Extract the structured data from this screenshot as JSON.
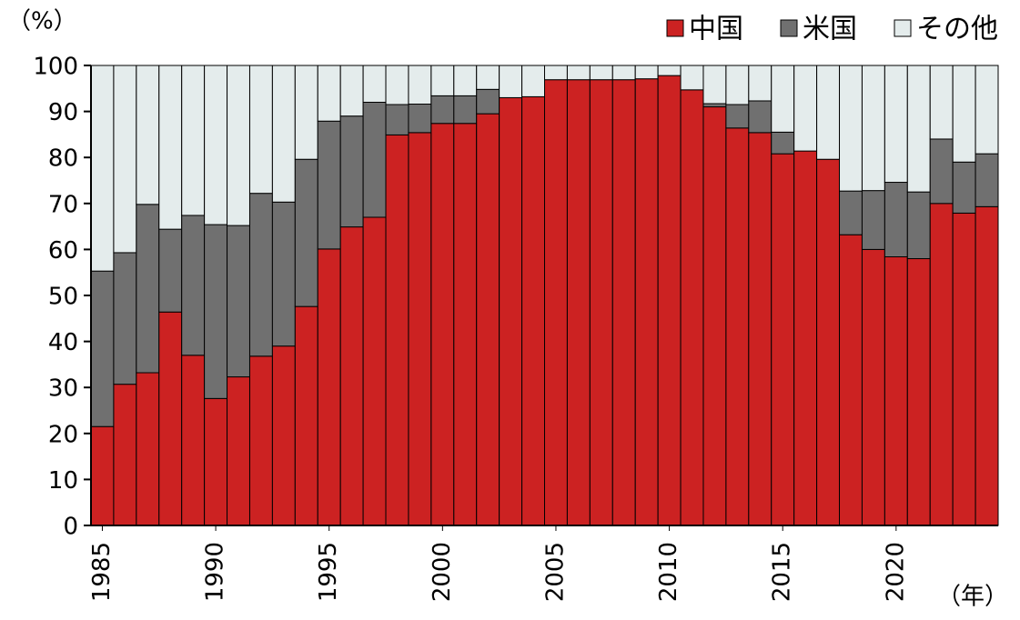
{
  "chart_data": {
    "type": "stacked_bar",
    "y_unit_label": "（%）",
    "x_unit_label": "（年）",
    "x": [
      1985,
      1986,
      1987,
      1988,
      1989,
      1990,
      1991,
      1992,
      1993,
      1994,
      1995,
      1996,
      1997,
      1998,
      1999,
      2000,
      2001,
      2002,
      2003,
      2004,
      2005,
      2006,
      2007,
      2008,
      2009,
      2010,
      2011,
      2012,
      2013,
      2014,
      2015,
      2016,
      2017,
      2018,
      2019,
      2020,
      2021,
      2022,
      2023,
      2024
    ],
    "xlim": [
      1984.5,
      2024.5
    ],
    "xticks": [
      1985,
      1990,
      1995,
      2000,
      2005,
      2010,
      2015,
      2020
    ],
    "ylim": [
      0,
      100
    ],
    "yticks": [
      0,
      10,
      20,
      30,
      40,
      50,
      60,
      70,
      80,
      90,
      100
    ],
    "legend": "top-right",
    "series": [
      {
        "name": "中国",
        "color": "#cc2222",
        "values": [
          21.5,
          30.7,
          33.2,
          46.4,
          37,
          27.6,
          32.3,
          36.8,
          39,
          47.6,
          60.1,
          64.9,
          67,
          84.9,
          85.4,
          87.4,
          87.4,
          89.5,
          93,
          93.2,
          96.9,
          96.9,
          96.9,
          96.9,
          97.1,
          97.8,
          94.7,
          91,
          86.4,
          85.4,
          80.8,
          81.4,
          79.6,
          63.2,
          60,
          58.4,
          58,
          70,
          67.9,
          69.3
        ]
      },
      {
        "name": "米国",
        "color": "#707070",
        "values": [
          33.8,
          28.6,
          36.6,
          18,
          30.4,
          37.8,
          32.9,
          35.4,
          31.3,
          32,
          27.8,
          24.1,
          25,
          6.6,
          6.2,
          6,
          6,
          5.3,
          0,
          0,
          0,
          0,
          0,
          0,
          0,
          0,
          0,
          0.7,
          5.1,
          6.9,
          4.7,
          0,
          0,
          9.5,
          12.8,
          16.2,
          14.5,
          14,
          11.1,
          11.5
        ]
      },
      {
        "name": "その他",
        "color": "#e4ecec",
        "values": [
          44.7,
          40.7,
          30.2,
          35.6,
          32.6,
          34.6,
          34.8,
          27.8,
          29.7,
          20.4,
          12.1,
          11,
          8,
          8.5,
          8.4,
          6.6,
          6.6,
          5.2,
          7,
          6.8,
          3.1,
          3.1,
          3.1,
          3.1,
          2.9,
          2.2,
          5.3,
          8.3,
          8.5,
          7.7,
          14.5,
          18.6,
          20.4,
          27.3,
          27.2,
          25.4,
          27.5,
          16,
          21,
          19.2
        ]
      }
    ]
  }
}
